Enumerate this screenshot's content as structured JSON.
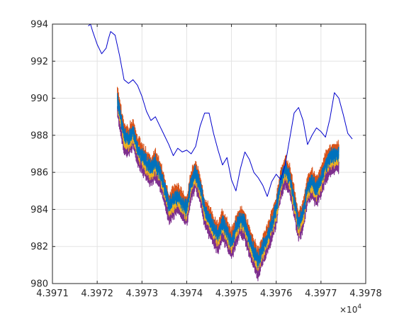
{
  "figure": {
    "background": "#ffffff",
    "axis_color": "#262626",
    "grid_color": "#e3e3e3"
  },
  "chart_data": {
    "type": "line",
    "title": "",
    "xlabel": "",
    "ylabel": "",
    "x_multiplier_label": "×10",
    "x_multiplier_exponent": "4",
    "xlim": [
      4.3971,
      4.3978
    ],
    "ylim": [
      980,
      994
    ],
    "grid": true,
    "legend": "none",
    "x_ticks": [
      4.3971,
      4.3972,
      4.3973,
      4.3974,
      4.3975,
      4.3976,
      4.3977,
      4.3978
    ],
    "x_tick_labels": [
      "4.3971",
      "4.3972",
      "4.3973",
      "4.3974",
      "4.3975",
      "4.3976",
      "4.3977",
      "4.3978"
    ],
    "y_ticks": [
      980,
      982,
      984,
      986,
      988,
      990,
      992,
      994
    ],
    "y_tick_labels": [
      "980",
      "982",
      "984",
      "986",
      "988",
      "990",
      "992",
      "994"
    ],
    "reference_series": {
      "color": "#0000cc",
      "x": [
        4.39718,
        4.397185,
        4.39719,
        4.3972,
        4.39721,
        4.39722,
        4.397225,
        4.39723,
        4.39724,
        4.39725,
        4.39726,
        4.39727,
        4.39728,
        4.39729,
        4.3973,
        4.39731,
        4.39732,
        4.39733,
        4.39734,
        4.39735,
        4.39736,
        4.39737,
        4.39738,
        4.39739,
        4.3974,
        4.39741,
        4.39742,
        4.39743,
        4.39744,
        4.39745,
        4.39746,
        4.39747,
        4.39748,
        4.39749,
        4.3975,
        4.39751,
        4.39752,
        4.39753,
        4.39754,
        4.39755,
        4.39756,
        4.39757,
        4.39758,
        4.39759,
        4.3976,
        4.39761,
        4.39762,
        4.39763,
        4.39764,
        4.39765,
        4.39766,
        4.39767,
        4.39768,
        4.39769,
        4.3977,
        4.39771,
        4.39772,
        4.39773,
        4.39774,
        4.39775,
        4.39776,
        4.39777
      ],
      "y": [
        993.9,
        994.0,
        993.6,
        992.9,
        992.4,
        992.7,
        993.2,
        993.6,
        993.4,
        992.3,
        991.0,
        990.8,
        991.0,
        990.7,
        990.1,
        989.3,
        988.8,
        989.0,
        988.5,
        988.0,
        987.5,
        986.9,
        987.3,
        987.1,
        987.2,
        987.0,
        987.4,
        988.5,
        989.2,
        989.2,
        988.1,
        987.2,
        986.4,
        986.8,
        985.6,
        985.0,
        986.2,
        987.1,
        986.7,
        986.0,
        985.7,
        985.3,
        984.7,
        985.5,
        985.9,
        985.6,
        986.4,
        987.8,
        989.2,
        989.5,
        988.8,
        987.5,
        988.0,
        988.4,
        988.2,
        987.9,
        988.9,
        990.3,
        990.0,
        989.1,
        988.1,
        987.8
      ]
    },
    "ensemble_center": {
      "x": [
        4.397245,
        4.39725,
        4.39726,
        4.39727,
        4.39728,
        4.39729,
        4.3973,
        4.39731,
        4.39732,
        4.39733,
        4.39734,
        4.39735,
        4.39736,
        4.39737,
        4.39738,
        4.39739,
        4.3974,
        4.39741,
        4.39742,
        4.39743,
        4.39744,
        4.39745,
        4.39746,
        4.39747,
        4.39748,
        4.39749,
        4.3975,
        4.39751,
        4.39752,
        4.39753,
        4.39754,
        4.39755,
        4.39756,
        4.39757,
        4.39758,
        4.39759,
        4.3976,
        4.39761,
        4.39762,
        4.39763,
        4.39764,
        4.39765,
        4.39766,
        4.39767,
        4.39768,
        4.39769,
        4.3977,
        4.39771,
        4.39772,
        4.39773,
        4.39774
      ],
      "y": [
        989.9,
        989.3,
        988.0,
        987.8,
        988.2,
        987.3,
        986.9,
        986.5,
        986.2,
        986.5,
        986.0,
        985.2,
        984.2,
        984.5,
        984.7,
        984.3,
        984.0,
        985.5,
        986.0,
        985.2,
        984.0,
        983.5,
        983.0,
        982.6,
        983.3,
        982.8,
        982.2,
        983.0,
        983.5,
        983.2,
        982.4,
        981.7,
        981.2,
        981.9,
        982.5,
        983.2,
        984.0,
        985.5,
        986.2,
        985.7,
        984.5,
        983.2,
        983.8,
        985.2,
        985.5,
        985.1,
        985.6,
        986.4,
        986.8,
        986.9,
        987.0
      ]
    },
    "series": [
      {
        "color": "#7e2f8e",
        "offset": -0.62
      },
      {
        "color": "#d95319",
        "offset": 0.34
      },
      {
        "color": "#edb120",
        "offset": -0.22
      },
      {
        "color": "#0072bd",
        "offset": 0.02
      }
    ]
  }
}
